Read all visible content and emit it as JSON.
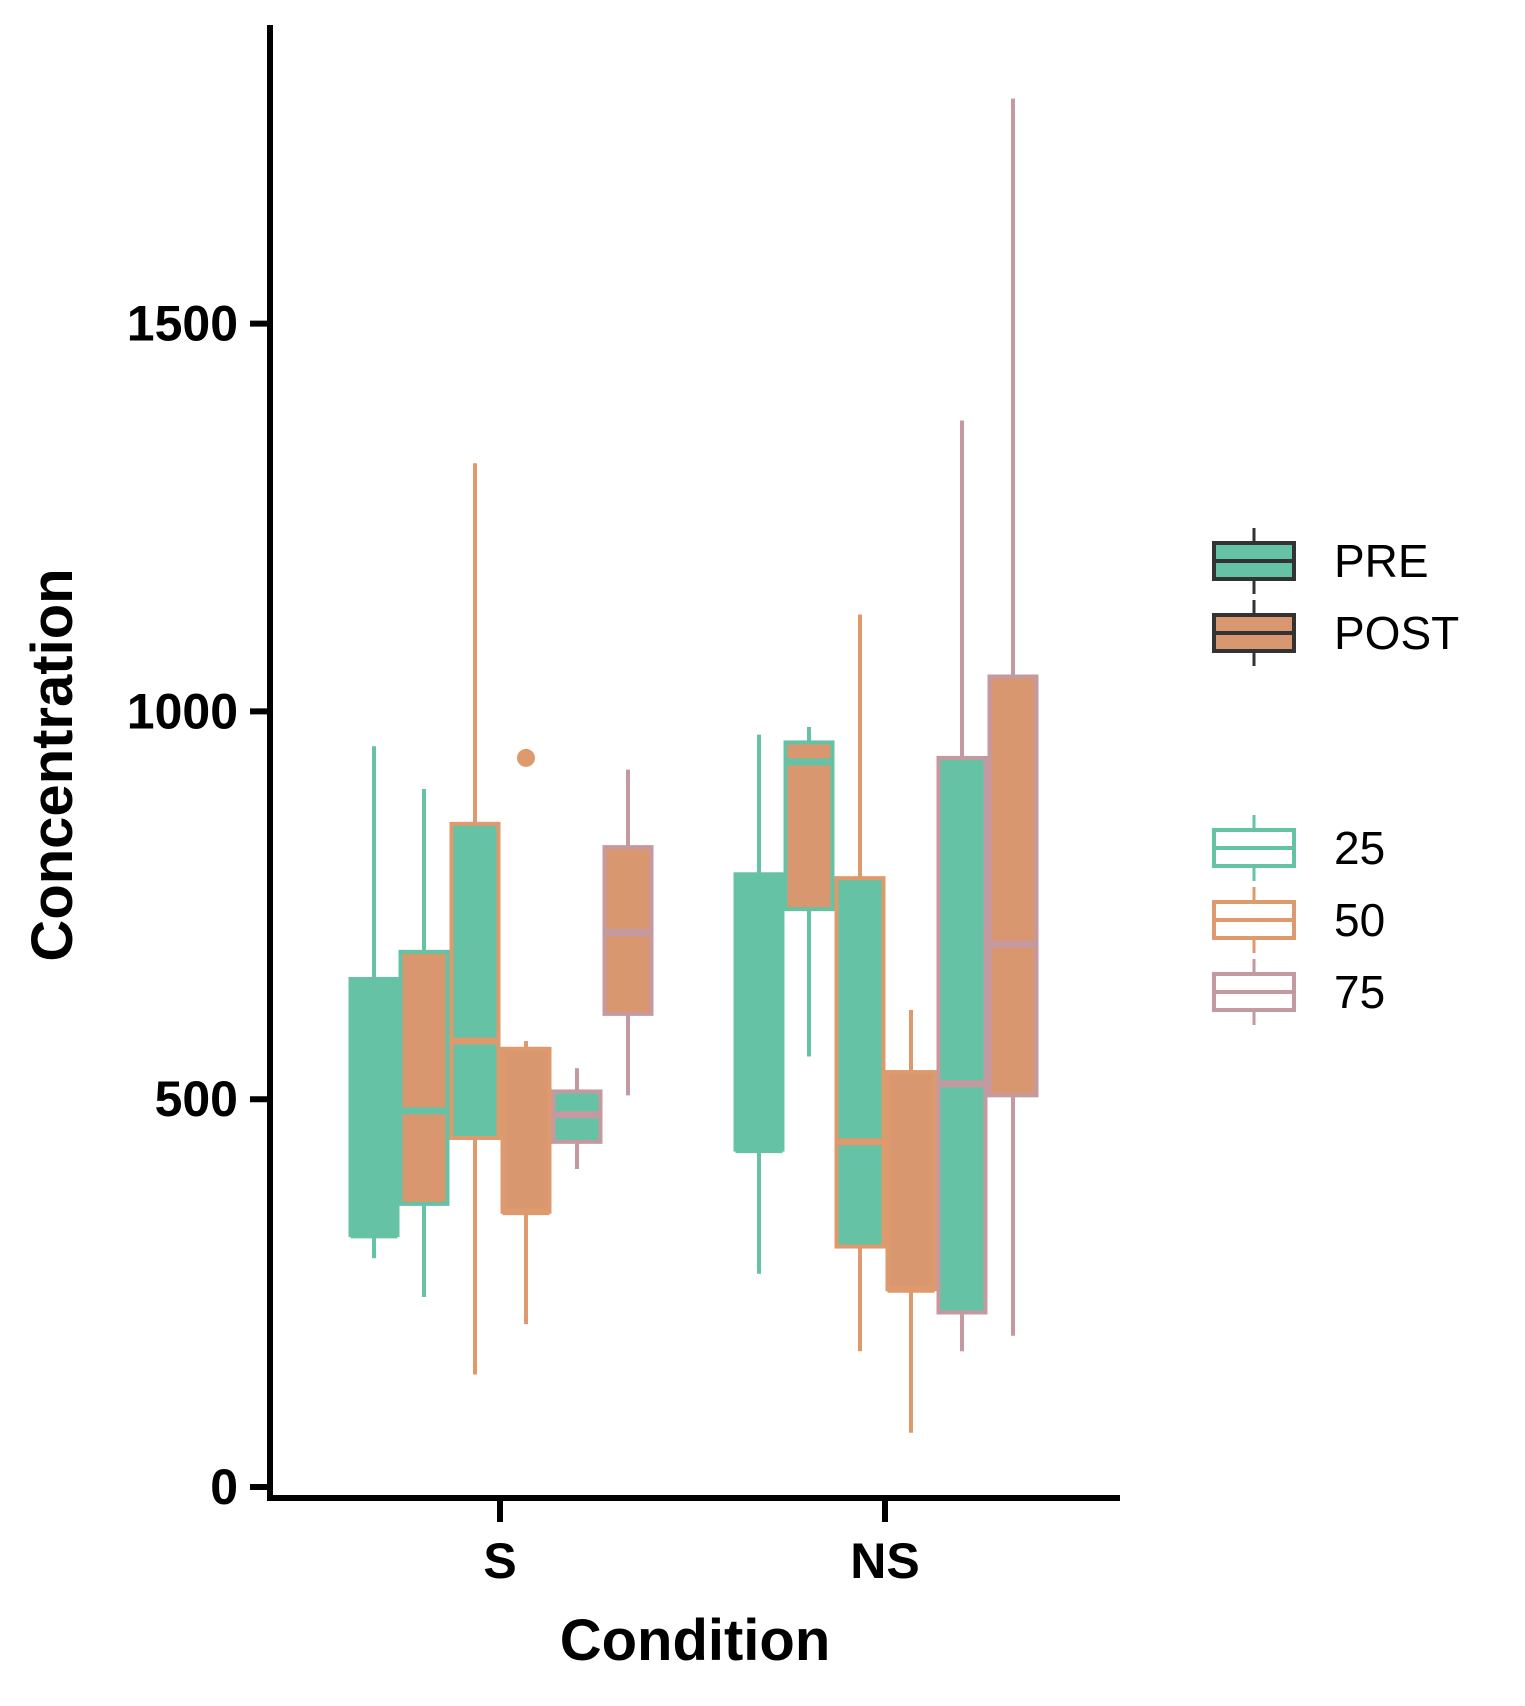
{
  "chart_data": {
    "type": "box",
    "xlabel": "Condition",
    "ylabel": "Concentration",
    "ylim": [
      -20,
      1930
    ],
    "y_ticks": [
      0,
      500,
      1000,
      1500
    ],
    "y_tick_labels": [
      "0",
      "500",
      "1000",
      "1500"
    ],
    "categories": [
      "S",
      "NS"
    ],
    "fill_colors": {
      "PRE": "#66c2a5",
      "POST": "#d9976f"
    },
    "outline_colors": {
      "25": "#66c2a5",
      "50": "#de9a6d",
      "75": "#c49aa0"
    },
    "legend_fill": {
      "entries": [
        {
          "label": "PRE",
          "color": "#66c2a5"
        },
        {
          "label": "POST",
          "color": "#d9976f"
        }
      ]
    },
    "legend_outline": {
      "entries": [
        {
          "label": "25",
          "color": "#66c2a5"
        },
        {
          "label": "50",
          "color": "#de9a6d"
        },
        {
          "label": "75",
          "color": "#c49aa0"
        }
      ]
    },
    "boxes": [
      {
        "category": "S",
        "fill": "PRE",
        "outline": "25",
        "whisker_low": 295,
        "q1": 325,
        "median": 325,
        "q3": 655,
        "whisker_high": 955,
        "outliers": []
      },
      {
        "category": "S",
        "fill": "POST",
        "outline": "25",
        "whisker_low": 245,
        "q1": 365,
        "median": 485,
        "q3": 690,
        "whisker_high": 900,
        "outliers": []
      },
      {
        "category": "S",
        "fill": "PRE",
        "outline": "50",
        "whisker_low": 145,
        "q1": 450,
        "median": 575,
        "q3": 855,
        "whisker_high": 1320,
        "outliers": []
      },
      {
        "category": "S",
        "fill": "POST",
        "outline": "50",
        "whisker_low": 210,
        "q1": 355,
        "median": 355,
        "q3": 565,
        "whisker_high": 575,
        "outliers": [
          940
        ]
      },
      {
        "category": "S",
        "fill": "PRE",
        "outline": "75",
        "whisker_low": 410,
        "q1": 445,
        "median": 480,
        "q3": 510,
        "whisker_high": 540,
        "outliers": []
      },
      {
        "category": "S",
        "fill": "POST",
        "outline": "75",
        "whisker_low": 505,
        "q1": 610,
        "median": 715,
        "q3": 825,
        "whisker_high": 925,
        "outliers": []
      },
      {
        "category": "NS",
        "fill": "PRE",
        "outline": "25",
        "whisker_low": 275,
        "q1": 435,
        "median": 435,
        "q3": 790,
        "whisker_high": 970,
        "outliers": []
      },
      {
        "category": "NS",
        "fill": "POST",
        "outline": "25",
        "whisker_low": 555,
        "q1": 745,
        "median": 935,
        "q3": 960,
        "whisker_high": 980,
        "outliers": []
      },
      {
        "category": "NS",
        "fill": "PRE",
        "outline": "50",
        "whisker_low": 175,
        "q1": 310,
        "median": 445,
        "q3": 785,
        "whisker_high": 1125,
        "outliers": []
      },
      {
        "category": "NS",
        "fill": "POST",
        "outline": "50",
        "whisker_low": 70,
        "q1": 255,
        "median": 255,
        "q3": 535,
        "whisker_high": 615,
        "outliers": []
      },
      {
        "category": "NS",
        "fill": "PRE",
        "outline": "75",
        "whisker_low": 175,
        "q1": 225,
        "median": 520,
        "q3": 940,
        "whisker_high": 1375,
        "outliers": []
      },
      {
        "category": "NS",
        "fill": "POST",
        "outline": "75",
        "whisker_low": 195,
        "q1": 505,
        "median": 700,
        "q3": 1045,
        "whisker_high": 1790,
        "outliers": []
      }
    ]
  }
}
